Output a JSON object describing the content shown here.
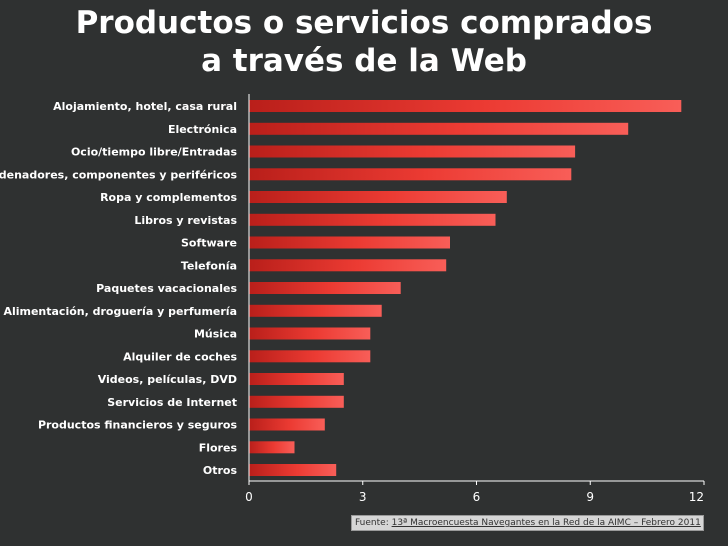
{
  "title": {
    "line1": "Productos o servicios comprados",
    "line2": "a través de la Web"
  },
  "source": {
    "prefix": "Fuente: ",
    "link_text": "13ª Macroencuesta Navegantes en la Red de la AIMC – Febrero 2011"
  },
  "colors": {
    "background": "#2f3131",
    "bar": "#ec3b33",
    "bar_light": "#f85e58",
    "bar_dark": "#b91f1a",
    "axis": "#ffffff"
  },
  "chart_data": {
    "type": "bar",
    "orientation": "horizontal",
    "title": "Productos o servicios comprados a través de la Web",
    "categories": [
      "Alojamiento, hotel, casa rural",
      "Electrónica",
      "Ocio/tiempo libre/Entradas",
      "Ordenadores, componentes y periféricos",
      "Ropa y complementos",
      "Libros y revistas",
      "Software",
      "Telefonía",
      "Paquetes vacacionales",
      "Alimentación, droguería y perfumería",
      "Música",
      "Alquiler de coches",
      "Videos, películas, DVD",
      "Servicios de Internet",
      "Productos financieros y seguros",
      "Flores",
      "Otros"
    ],
    "values": [
      11.4,
      10.0,
      8.6,
      8.5,
      6.8,
      6.5,
      5.3,
      5.2,
      4.0,
      3.5,
      3.2,
      3.2,
      2.5,
      2.5,
      2.0,
      1.2,
      2.3
    ],
    "xlim": [
      0,
      12
    ],
    "xticks": [
      0,
      3,
      6,
      9,
      12
    ],
    "xlabel": "",
    "ylabel": "",
    "grid": false,
    "legend": "none"
  }
}
